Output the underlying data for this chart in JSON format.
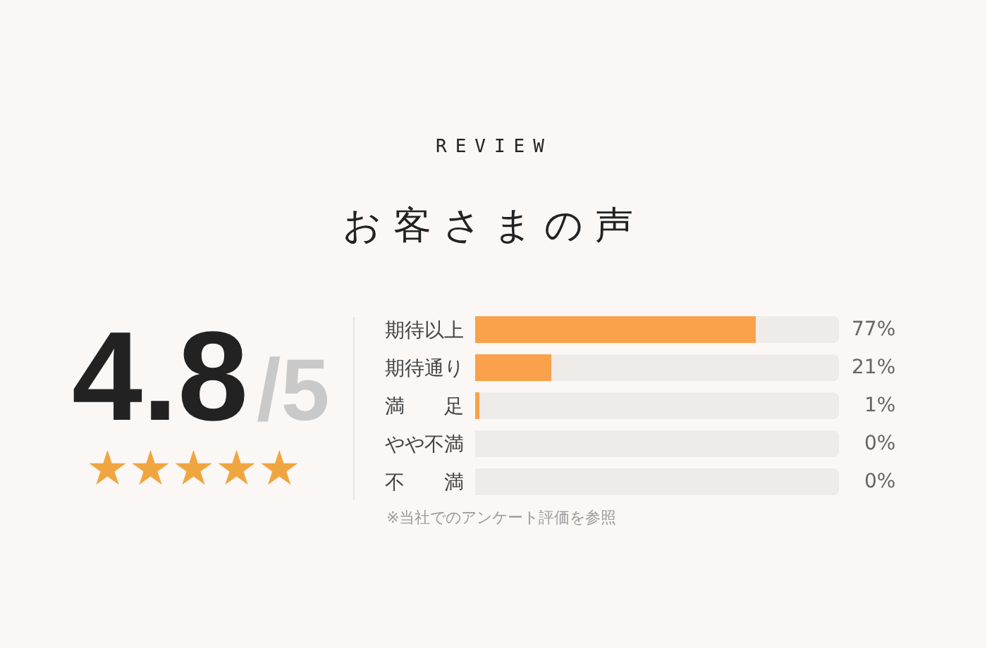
{
  "chart_data": {
    "type": "bar",
    "orientation": "horizontal",
    "stacked": true,
    "subtitle": "REVIEW",
    "title": "お客さまの声",
    "categories": [
      "期待以上",
      "期待通り",
      "満　　足",
      "やや不満",
      "不　　満"
    ],
    "series": [
      {
        "color": "#f9a24b",
        "values": [
          77,
          21,
          1,
          0,
          0
        ],
        "value_labels": [
          "77%",
          "21%",
          "1%",
          "0%",
          "0%"
        ]
      },
      {
        "color": "#eeebe9",
        "values": [
          23,
          79,
          99,
          100,
          100
        ]
      }
    ],
    "xlim": [
      0,
      100
    ],
    "tick_labels": "y",
    "annotations": [
      "4.8",
      "/5",
      "★★★★★",
      "※当社でのアンケート評価を参照"
    ]
  }
}
